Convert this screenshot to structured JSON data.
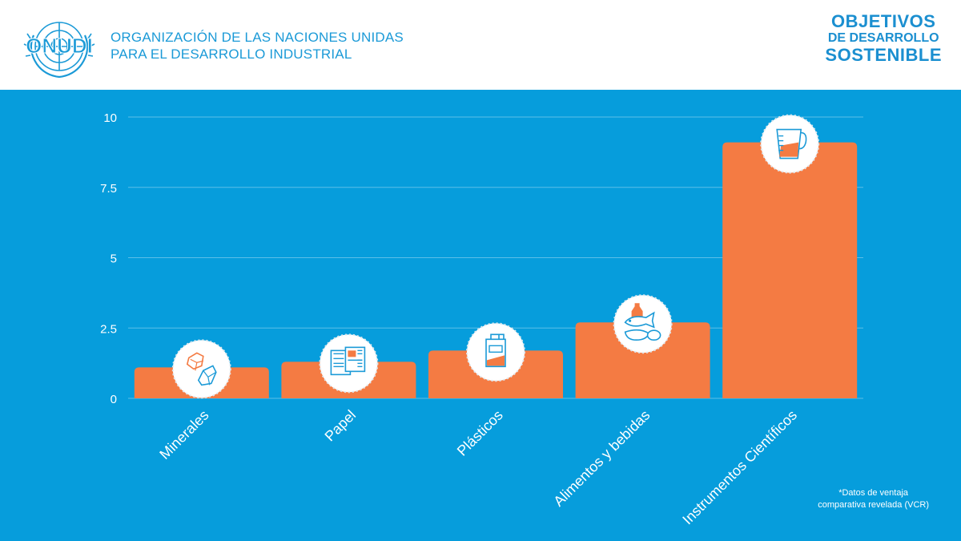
{
  "header": {
    "logo_text": "ONUDI",
    "org_line1": "ORGANIZACIÓN DE LAS NACIONES UNIDAS",
    "org_line2": "PARA EL DESARROLLO INDUSTRIAL",
    "sdg_line1": "OBJETIVOS",
    "sdg_line2": "DE DESARROLLO",
    "sdg_line3": "SOSTENIBLE"
  },
  "footnote": {
    "line1": "*Datos de ventaja",
    "line2": "comparativa revelada (VCR)"
  },
  "colors": {
    "panel": "#069ddc",
    "bar": "#f47b43",
    "brand_blue": "#1b9ad7"
  },
  "chart_data": {
    "type": "bar",
    "categories": [
      "Minerales",
      "Papel",
      "Plásticos",
      "Alimentos y bebidas",
      "Instrumentos Científicos"
    ],
    "values": [
      1.1,
      1.3,
      1.7,
      2.7,
      9.1
    ],
    "icons": [
      "minerals-icon",
      "paper-icon",
      "plastic-container-icon",
      "food-beverage-icon",
      "measuring-beaker-icon"
    ],
    "yticks": [
      "0",
      "2.5",
      "5",
      "7.5",
      "10"
    ],
    "ytick_values": [
      0,
      2.5,
      5,
      7.5,
      10
    ],
    "ylim": [
      0,
      10
    ],
    "grid": true,
    "title": "",
    "xlabel": "",
    "ylabel": ""
  }
}
